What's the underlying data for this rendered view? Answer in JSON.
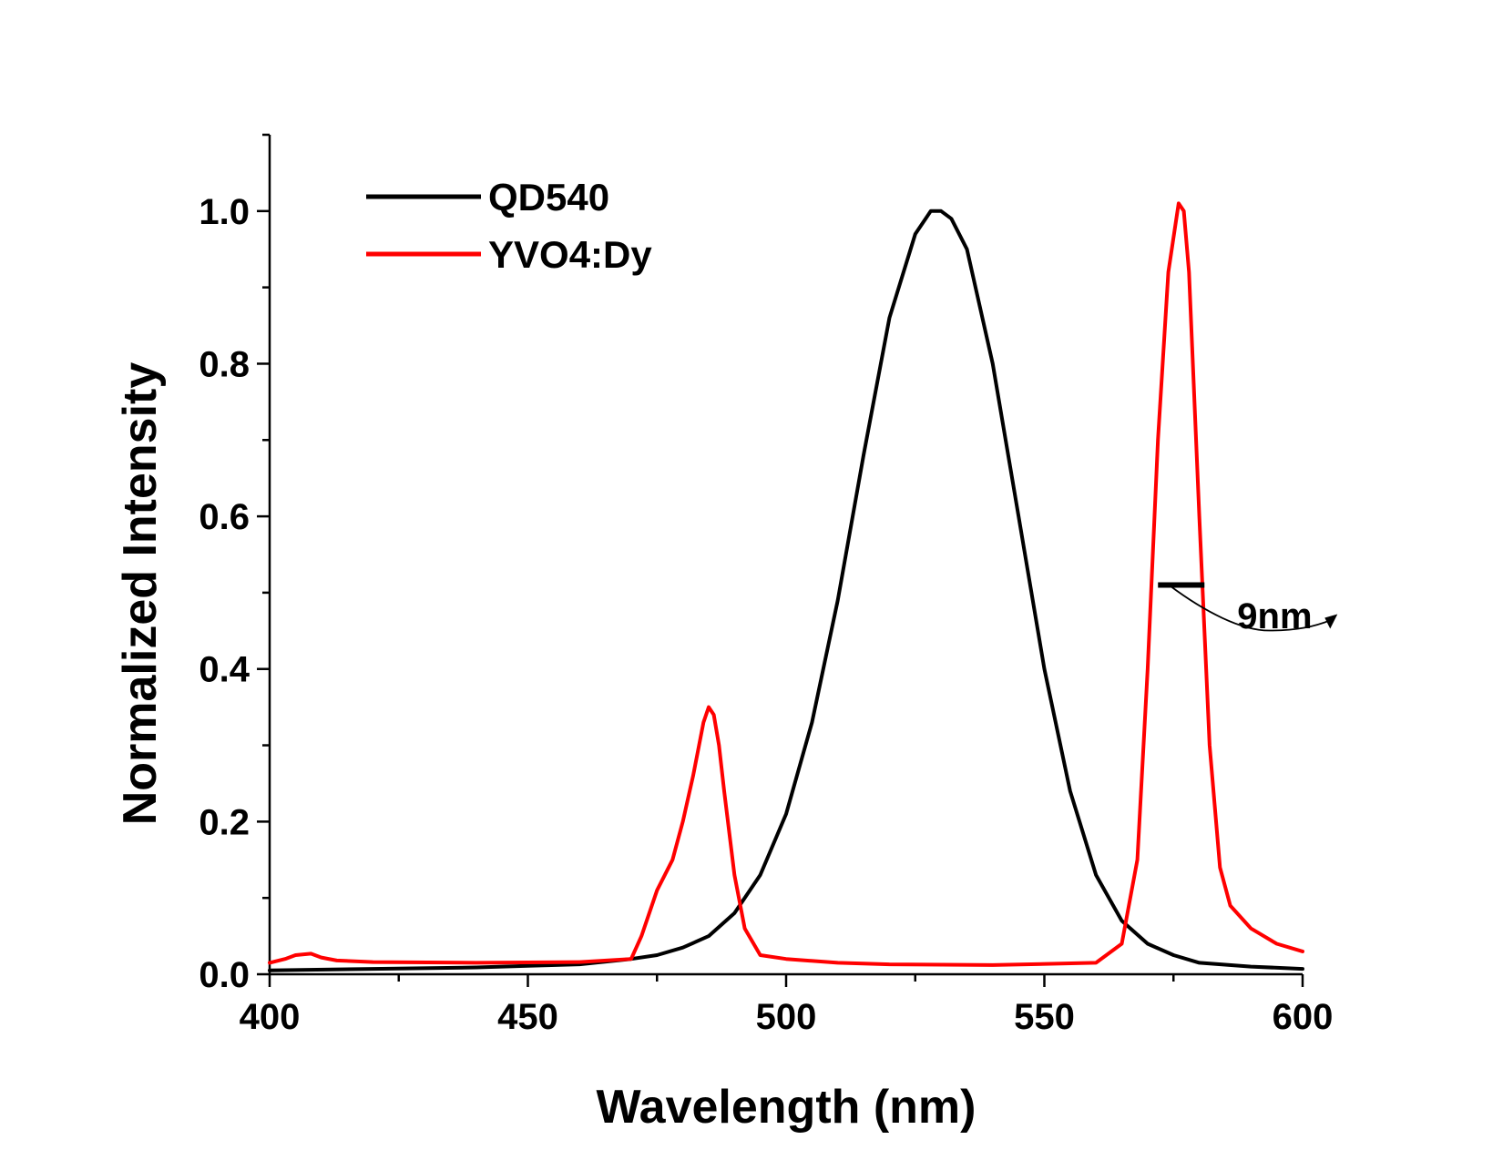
{
  "chart_data": {
    "type": "line",
    "title": "",
    "xlabel": "Wavelength (nm)",
    "ylabel": "Normalized Intensity",
    "xlim": [
      400,
      600
    ],
    "ylim": [
      0,
      1.1
    ],
    "x_ticks": [
      "400",
      "450",
      "500",
      "550",
      "600"
    ],
    "y_ticks": [
      "0.0",
      "0.2",
      "0.4",
      "0.6",
      "0.8",
      "1.0"
    ],
    "grid": false,
    "legend_position": "top-left",
    "series": [
      {
        "name": "QD540",
        "color": "#000000",
        "x": [
          400,
          420,
          440,
          450,
          460,
          470,
          475,
          480,
          485,
          490,
          495,
          500,
          505,
          510,
          515,
          520,
          525,
          528,
          530,
          532,
          535,
          540,
          545,
          550,
          555,
          560,
          565,
          570,
          575,
          580,
          590,
          600
        ],
        "y": [
          0.005,
          0.007,
          0.009,
          0.011,
          0.013,
          0.02,
          0.025,
          0.035,
          0.05,
          0.08,
          0.13,
          0.21,
          0.33,
          0.49,
          0.68,
          0.86,
          0.97,
          1.0,
          1.0,
          0.99,
          0.95,
          0.8,
          0.6,
          0.4,
          0.24,
          0.13,
          0.07,
          0.04,
          0.025,
          0.015,
          0.01,
          0.007
        ]
      },
      {
        "name": "YVO4:Dy",
        "color": "#ff0000",
        "x": [
          400,
          403,
          405,
          408,
          410,
          413,
          420,
          440,
          460,
          470,
          472,
          475,
          478,
          480,
          482,
          484,
          485,
          486,
          487,
          488,
          490,
          492,
          495,
          500,
          510,
          520,
          540,
          560,
          565,
          568,
          570,
          572,
          574,
          576,
          577,
          578,
          580,
          582,
          584,
          586,
          590,
          595,
          600
        ],
        "y": [
          0.015,
          0.02,
          0.025,
          0.027,
          0.022,
          0.018,
          0.016,
          0.015,
          0.016,
          0.02,
          0.05,
          0.11,
          0.15,
          0.2,
          0.26,
          0.33,
          0.35,
          0.34,
          0.3,
          0.24,
          0.13,
          0.06,
          0.025,
          0.02,
          0.015,
          0.013,
          0.012,
          0.015,
          0.04,
          0.15,
          0.4,
          0.7,
          0.92,
          1.01,
          1.0,
          0.92,
          0.6,
          0.3,
          0.14,
          0.09,
          0.06,
          0.04,
          0.03
        ]
      }
    ],
    "annotations": [
      {
        "text": "9nm",
        "bar_x": [
          572,
          581
        ],
        "bar_y": 0.51,
        "label_x": 593,
        "label_y": 0.47
      }
    ]
  }
}
